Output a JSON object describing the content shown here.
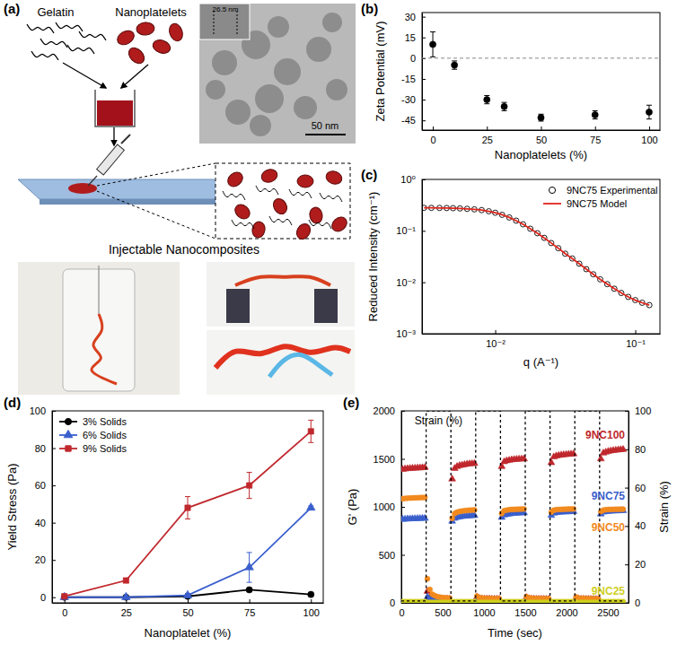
{
  "chart_data": [
    {
      "type": "diagram",
      "title": "(a)",
      "annotations": [
        "Gelatin",
        "Nanoplatelets",
        "26.5 nm",
        "50 nm",
        "Injectable Nanocomposites"
      ]
    },
    {
      "type": "scatter",
      "title": "(b)",
      "xlabel": "Nanoplatelets (%)",
      "ylabel": "Zeta Potential (mV)",
      "x": [
        0,
        10,
        25,
        33,
        50,
        75,
        100
      ],
      "values": [
        10,
        -5,
        -30,
        -35,
        -43,
        -41,
        -39
      ],
      "errors": [
        9,
        3,
        3,
        3,
        2.5,
        3,
        5
      ],
      "color": "#000000",
      "marker": "circle",
      "hline": 0,
      "xlim": [
        -5,
        105
      ],
      "xticks": [
        0,
        25,
        50,
        75,
        100
      ],
      "ylim": [
        -52,
        33
      ],
      "yticks": [
        -45,
        -30,
        -15,
        0,
        15,
        30
      ]
    },
    {
      "type": "line",
      "title": "(c)",
      "xlabel": "q (A⁻¹)",
      "ylabel": "Reduced Intensity (cm⁻¹)",
      "log": true,
      "legend": "top-right",
      "x": [
        0.0031,
        0.0035,
        0.004,
        0.0045,
        0.005,
        0.0056,
        0.0063,
        0.0071,
        0.008,
        0.009,
        0.01,
        0.0112,
        0.0126,
        0.0141,
        0.0158,
        0.0178,
        0.02,
        0.0224,
        0.0251,
        0.0282,
        0.0316,
        0.0355,
        0.0398,
        0.0447,
        0.0501,
        0.0562,
        0.0631,
        0.0708,
        0.0794,
        0.0891,
        0.1,
        0.112,
        0.126
      ],
      "series": [
        {
          "name": "9NC75 Experimental",
          "type": "scatter",
          "marker": "circle-open",
          "color": "#000000",
          "values": [
            0.28,
            0.28,
            0.279,
            0.278,
            0.276,
            0.273,
            0.268,
            0.262,
            0.253,
            0.24,
            0.225,
            0.205,
            0.182,
            0.158,
            0.134,
            0.11,
            0.09,
            0.073,
            0.058,
            0.046,
            0.036,
            0.029,
            0.023,
            0.018,
            0.0143,
            0.0114,
            0.0092,
            0.0075,
            0.0062,
            0.0052,
            0.0045,
            0.004,
            0.0036
          ]
        },
        {
          "name": "9NC75 Model",
          "type": "line",
          "color": "#e0241b",
          "values": [
            0.28,
            0.28,
            0.279,
            0.278,
            0.276,
            0.273,
            0.268,
            0.262,
            0.253,
            0.24,
            0.225,
            0.205,
            0.182,
            0.158,
            0.134,
            0.11,
            0.09,
            0.073,
            0.058,
            0.046,
            0.036,
            0.029,
            0.023,
            0.018,
            0.0143,
            0.0114,
            0.0092,
            0.0075,
            0.0062,
            0.0052,
            0.0045,
            0.004,
            0.0036
          ]
        }
      ],
      "xlim": [
        0.003,
        0.15
      ],
      "xticks": [
        {
          "value": 0.01,
          "label": "10⁻²"
        },
        {
          "value": 0.1,
          "label": "10⁻¹"
        }
      ],
      "ylim": [
        0.001,
        1
      ],
      "yticks": [
        {
          "value": 0.001,
          "label": "10⁻³"
        },
        {
          "value": 0.01,
          "label": "10⁻²"
        },
        {
          "value": 0.1,
          "label": "10⁻¹"
        },
        {
          "value": 1,
          "label": "10⁰"
        }
      ]
    },
    {
      "type": "line",
      "title": "(d)",
      "xlabel": "Nanoplatelet (%)",
      "ylabel": "Yield Stress (Pa)",
      "legend": "top-left",
      "x": [
        0,
        25,
        50,
        75,
        100
      ],
      "series": [
        {
          "name": "3% Solids",
          "color": "#000000",
          "marker": "circle",
          "values": [
            0,
            0,
            0.5,
            4,
            1.5
          ],
          "errors": [
            0,
            0,
            0.3,
            1,
            0.5
          ]
        },
        {
          "name": "6% Solids",
          "color": "#3a5fcd",
          "marker": "triangle",
          "values": [
            0,
            0,
            1,
            16,
            48
          ],
          "errors": [
            0,
            0,
            1,
            8,
            1
          ]
        },
        {
          "name": "9% Solids",
          "color": "#c0282d",
          "marker": "square",
          "values": [
            0.5,
            9,
            48,
            60,
            89
          ],
          "errors": [
            0,
            1,
            6,
            7,
            6
          ]
        }
      ],
      "xlim": [
        -5,
        105
      ],
      "xticks": [
        0,
        25,
        50,
        75,
        100
      ],
      "ylim": [
        -3,
        100
      ],
      "yticks": [
        0,
        20,
        40,
        60,
        80,
        100
      ]
    },
    {
      "type": "scatter",
      "title": "(e)",
      "xlabel": "Time (sec)",
      "ylabel": "G' (Pa)",
      "y2label": "Strain (%)",
      "x": [
        15,
        45,
        75,
        105,
        135,
        165,
        195,
        225,
        255,
        285,
        315,
        345,
        375,
        405,
        435,
        465,
        495,
        525,
        555,
        585,
        615,
        645,
        675,
        705,
        735,
        765,
        795,
        825,
        855,
        885,
        915,
        945,
        975,
        1005,
        1035,
        1065,
        1095,
        1125,
        1155,
        1185,
        1215,
        1245,
        1275,
        1305,
        1335,
        1365,
        1395,
        1425,
        1455,
        1485,
        1515,
        1545,
        1575,
        1605,
        1635,
        1665,
        1695,
        1725,
        1755,
        1785,
        1815,
        1845,
        1875,
        1905,
        1935,
        1965,
        1995,
        2025,
        2055,
        2085,
        2115,
        2145,
        2175,
        2205,
        2235,
        2265,
        2295,
        2325,
        2355,
        2385,
        2415,
        2445,
        2475,
        2505,
        2535,
        2565,
        2595,
        2625,
        2655,
        2685
      ],
      "series": [
        {
          "name": "9NC100",
          "color": "#c0282d",
          "marker": "triangle",
          "values": [
            1390,
            1395,
            1398,
            1400,
            1402,
            1403,
            1405,
            1406,
            1408,
            1410,
            120,
            60,
            50,
            45,
            45,
            42,
            40,
            40,
            40,
            40,
            1290,
            1400,
            1420,
            1430,
            1435,
            1440,
            1445,
            1448,
            1450,
            1452,
            60,
            45,
            42,
            40,
            40,
            40,
            38,
            38,
            38,
            38,
            1420,
            1470,
            1480,
            1485,
            1490,
            1493,
            1495,
            1497,
            1498,
            1500,
            55,
            42,
            40,
            40,
            38,
            38,
            38,
            37,
            37,
            37,
            1460,
            1520,
            1530,
            1535,
            1540,
            1543,
            1545,
            1548,
            1550,
            1552,
            50,
            40,
            38,
            38,
            37,
            37,
            36,
            36,
            36,
            36,
            1500,
            1560,
            1570,
            1578,
            1583,
            1587,
            1590,
            1593,
            1596,
            1598
          ]
        },
        {
          "name": "9NC75",
          "color": "#3a5fcd",
          "marker": "triangle",
          "values": [
            870,
            872,
            874,
            875,
            876,
            877,
            878,
            879,
            880,
            880,
            60,
            40,
            35,
            32,
            30,
            30,
            30,
            28,
            28,
            28,
            850,
            880,
            890,
            895,
            900,
            903,
            905,
            907,
            908,
            910,
            45,
            35,
            32,
            30,
            30,
            29,
            29,
            28,
            28,
            28,
            890,
            915,
            922,
            926,
            930,
            932,
            934,
            936,
            937,
            938,
            40,
            33,
            31,
            30,
            29,
            29,
            28,
            28,
            28,
            28,
            910,
            935,
            940,
            943,
            945,
            947,
            948,
            949,
            950,
            951,
            38,
            32,
            30,
            29,
            29,
            28,
            28,
            28,
            27,
            27,
            925,
            945,
            950,
            953,
            955,
            957,
            958,
            959,
            960,
            960
          ]
        },
        {
          "name": "9NC50",
          "color": "#f28a1e",
          "marker": "circle",
          "values": [
            1085,
            1088,
            1090,
            1092,
            1093,
            1094,
            1095,
            1096,
            1097,
            1098,
            250,
            140,
            90,
            75,
            65,
            60,
            55,
            52,
            50,
            50,
            880,
            930,
            945,
            952,
            957,
            960,
            963,
            965,
            967,
            968,
            70,
            55,
            50,
            48,
            46,
            45,
            45,
            44,
            44,
            44,
            930,
            960,
            966,
            970,
            972,
            974,
            975,
            976,
            977,
            978,
            65,
            52,
            48,
            46,
            45,
            44,
            44,
            43,
            43,
            43,
            945,
            965,
            970,
            972,
            974,
            975,
            976,
            977,
            977,
            978,
            60,
            50,
            47,
            45,
            44,
            43,
            43,
            43,
            42,
            42,
            950,
            966,
            970,
            972,
            973,
            974,
            975,
            975,
            976,
            976
          ]
        },
        {
          "name": "9NC25",
          "color": "#cfcf1f",
          "marker": "circle",
          "values": [
            12,
            12,
            12,
            12,
            12,
            12,
            12,
            12,
            12,
            12,
            4,
            4,
            4,
            4,
            4,
            4,
            4,
            4,
            4,
            4,
            12,
            12,
            12,
            12,
            12,
            12,
            12,
            12,
            12,
            12,
            4,
            4,
            4,
            4,
            4,
            4,
            4,
            4,
            4,
            4,
            12,
            12,
            12,
            12,
            12,
            12,
            12,
            12,
            12,
            12,
            4,
            4,
            4,
            4,
            4,
            4,
            4,
            4,
            4,
            4,
            12,
            12,
            12,
            12,
            12,
            12,
            12,
            12,
            12,
            12,
            4,
            4,
            4,
            4,
            4,
            4,
            4,
            4,
            4,
            4,
            12,
            12,
            12,
            12,
            12,
            12,
            12,
            12,
            12,
            12
          ]
        },
        {
          "name": "Strain (%)",
          "type": "line",
          "line_style": "dashed",
          "axis": "y2",
          "color": "#000000",
          "x": [
            0,
            300,
            300,
            600,
            600,
            900,
            900,
            1200,
            1200,
            1500,
            1500,
            1800,
            1800,
            2100,
            2100,
            2400,
            2400,
            2700
          ],
          "values": [
            1,
            1,
            100,
            100,
            1,
            1,
            100,
            100,
            1,
            1,
            100,
            100,
            1,
            1,
            100,
            100,
            1,
            1
          ]
        }
      ],
      "xlim": [
        0,
        2750
      ],
      "xticks": [
        0,
        500,
        1000,
        1500,
        2000,
        2500
      ],
      "ylim": [
        0,
        2000
      ],
      "yticks": [
        0,
        500,
        1000,
        1500,
        2000
      ],
      "y2lim": [
        0,
        100
      ],
      "y2ticks": [
        0,
        20,
        40,
        60,
        80,
        100
      ]
    }
  ]
}
